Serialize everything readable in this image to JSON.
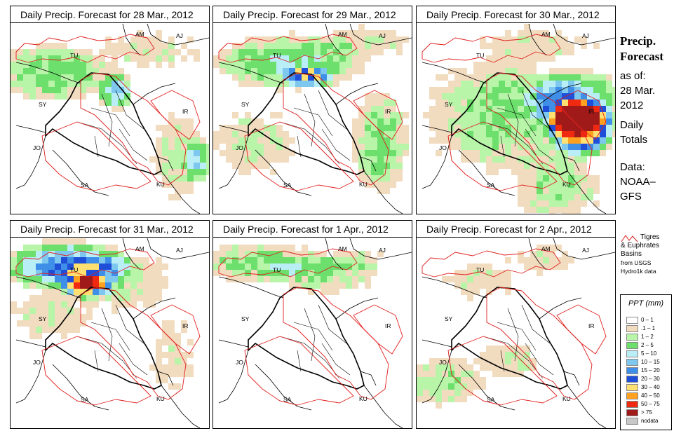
{
  "panels": [
    {
      "title": "Daily Precip. Forecast for  28 Mar., 2012",
      "scenario": "d1"
    },
    {
      "title": "Daily Precip. Forecast for  29 Mar., 2012",
      "scenario": "d2"
    },
    {
      "title": "Daily Precip. Forecast for  30 Mar., 2012",
      "scenario": "d3"
    },
    {
      "title": "Daily Precip. Forecast for  31 Mar., 2012",
      "scenario": "d4"
    },
    {
      "title": "Daily Precip. Forecast for  1 Apr., 2012",
      "scenario": "d5"
    },
    {
      "title": "Daily Precip. Forecast for  2 Apr., 2012",
      "scenario": "d6"
    }
  ],
  "country_labels": [
    "AM",
    "AJ",
    "TU",
    "SY",
    "IR",
    "JO",
    "SA",
    "KU"
  ],
  "sidebar": {
    "title_line1": "Precip.",
    "title_line2": "Forecast",
    "asof": "as of:",
    "date_line1": "28 Mar.",
    "date_line2": "2012",
    "totals_line1": "Daily",
    "totals_line2": "Totals",
    "data_line1": "Data:",
    "data_line2": "NOAA–",
    "data_line3": "GFS"
  },
  "basin_key": {
    "line1": "Tigres",
    "line2": "& Euphrates",
    "line3": "Basins",
    "line4": "from USGS",
    "line5": "Hydro1k data",
    "line_color": "#e0201e"
  },
  "legend": {
    "title": "PPT (mm)",
    "items": [
      {
        "label": "0 – 1",
        "color": "#ffffff"
      },
      {
        "label": ".1 – 1",
        "color": "#f2dcbf"
      },
      {
        "label": "1 – 2",
        "color": "#b8f5a8"
      },
      {
        "label": "2 – 5",
        "color": "#6cdf6c"
      },
      {
        "label": "5 – 10",
        "color": "#b9eef7"
      },
      {
        "label": "10 – 15",
        "color": "#7ec8f0"
      },
      {
        "label": "15 – 20",
        "color": "#3f8fe8"
      },
      {
        "label": "20 – 30",
        "color": "#1f4fd8"
      },
      {
        "label": "30 – 40",
        "color": "#ffe070"
      },
      {
        "label": "40 – 50",
        "color": "#ffa020"
      },
      {
        "label": "50 – 75",
        "color": "#f02a10"
      },
      {
        "label": "> 75",
        "color": "#a01a1a"
      },
      {
        "label": "nodata",
        "color": "#c8c8c8"
      }
    ]
  }
}
